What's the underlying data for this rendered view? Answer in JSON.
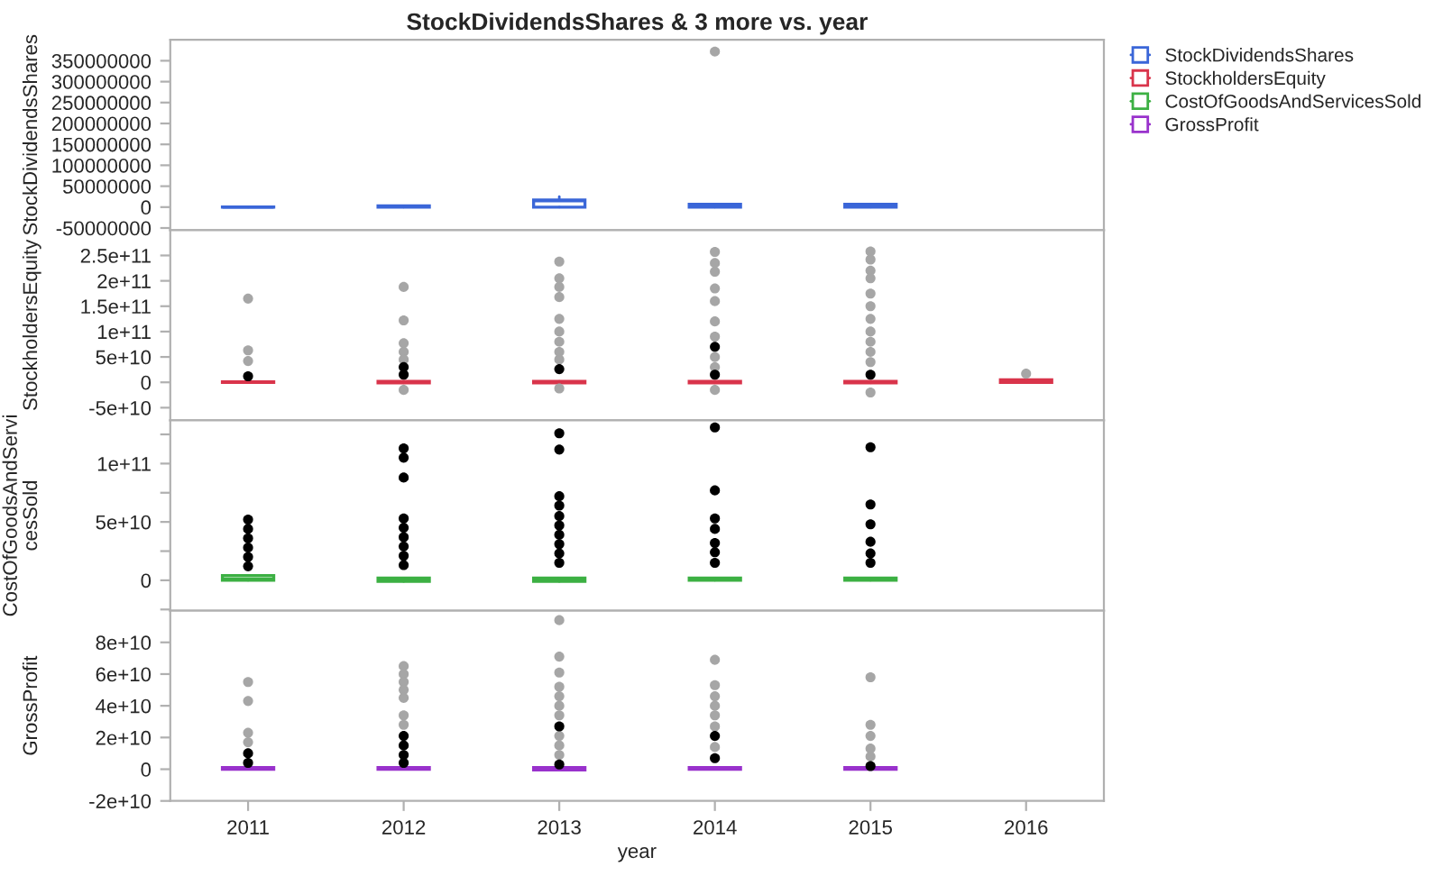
{
  "chart_data": [
    {
      "type": "box",
      "title": "StockDividendsShares & 3 more vs. year",
      "ylabel": "StockDividendsShares",
      "x": [
        2011,
        2012,
        2013,
        2014,
        2015
      ],
      "xlim": [
        2010.5,
        2016.5
      ],
      "xticks": [
        2011,
        2012,
        2013,
        2014,
        2015,
        2016
      ],
      "ylim": [
        -55000000,
        400000000
      ],
      "yticks": [
        -50000000,
        0,
        50000000,
        100000000,
        150000000,
        200000000,
        250000000,
        300000000,
        350000000
      ],
      "tick_labels": "y",
      "legend": "right",
      "series": [
        {
          "name": "StockDividendsShares",
          "color": "#3a66d8",
          "boxes": [
            {
              "low": 0,
              "q1": 0,
              "median": 0,
              "q3": 500000,
              "high": 500000
            },
            {
              "low": 0,
              "q1": 0,
              "median": 1000000,
              "q3": 3000000,
              "high": 3000000
            },
            {
              "low": 0,
              "q1": 0,
              "median": 15000000,
              "q3": 17000000,
              "high": 25000000
            },
            {
              "low": 0,
              "q1": 0,
              "median": 3000000,
              "q3": 7000000,
              "high": 7000000
            },
            {
              "low": 0,
              "q1": 0,
              "median": 3000000,
              "q3": 7000000,
              "high": 7000000
            }
          ]
        },
        {
          "type": "scatter",
          "color": "#a6a6a6",
          "x": [
            2014
          ],
          "values": [
            372000000
          ]
        }
      ]
    },
    {
      "type": "box",
      "ylabel": "StockholdersEquity",
      "x": [
        2011,
        2012,
        2013,
        2014,
        2015,
        2016
      ],
      "xlim": [
        2010.5,
        2016.5
      ],
      "xticks": [
        2011,
        2012,
        2013,
        2014,
        2015,
        2016
      ],
      "ylim": [
        -75000000000,
        300000000000
      ],
      "yticks": [
        {
          "value": -50000000000,
          "label": "-5e+10"
        },
        0,
        {
          "value": 50000000000,
          "label": "5e+10"
        },
        {
          "value": 100000000000,
          "label": "1e+11"
        },
        {
          "value": 150000000000,
          "label": "1.5e+11"
        },
        {
          "value": 200000000000,
          "label": "2e+11"
        },
        {
          "value": 250000000000,
          "label": "2.5e+11"
        }
      ],
      "tick_labels": "y",
      "legend": "right",
      "series": [
        {
          "name": "StockholdersEquity",
          "color": "#d9344b",
          "boxes": [
            {
              "low": 0,
              "q1": 0,
              "median": 500000000,
              "q3": 1000000000,
              "high": 1000000000
            },
            {
              "low": -1000000000,
              "q1": -1000000000,
              "median": 500000000,
              "q3": 2000000000,
              "high": 2000000000
            },
            {
              "low": -1000000000,
              "q1": -1000000000,
              "median": 500000000,
              "q3": 2000000000,
              "high": 2000000000
            },
            {
              "low": -1000000000,
              "q1": -1000000000,
              "median": 500000000,
              "q3": 2000000000,
              "high": 2000000000
            },
            {
              "low": -1000000000,
              "q1": -1000000000,
              "median": 500000000,
              "q3": 2000000000,
              "high": 2000000000
            },
            {
              "low": 0,
              "q1": 0,
              "median": 2000000000,
              "q3": 5000000000,
              "high": 5000000000
            }
          ]
        },
        {
          "type": "scatter",
          "color": "#a6a6a6",
          "x": [
            2011,
            2011,
            2011,
            2012,
            2012,
            2012,
            2012,
            2012,
            2012,
            2013,
            2013,
            2013,
            2013,
            2013,
            2013,
            2013,
            2013,
            2013,
            2013,
            2014,
            2014,
            2014,
            2014,
            2014,
            2014,
            2014,
            2014,
            2014,
            2014,
            2015,
            2015,
            2015,
            2015,
            2015,
            2015,
            2015,
            2015,
            2015,
            2015,
            2015,
            2015,
            2016
          ],
          "values": [
            165000000000,
            63000000000,
            42000000000,
            188000000000,
            122000000000,
            77000000000,
            60000000000,
            45000000000,
            -15000000000,
            238000000000,
            205000000000,
            188000000000,
            168000000000,
            125000000000,
            100000000000,
            80000000000,
            60000000000,
            45000000000,
            -12000000000,
            257000000000,
            235000000000,
            218000000000,
            185000000000,
            160000000000,
            120000000000,
            90000000000,
            50000000000,
            30000000000,
            -15000000000,
            258000000000,
            242000000000,
            220000000000,
            205000000000,
            175000000000,
            150000000000,
            125000000000,
            100000000000,
            80000000000,
            60000000000,
            40000000000,
            -20000000000,
            17000000000
          ]
        },
        {
          "type": "scatter",
          "color": "#000000",
          "x": [
            2011,
            2012,
            2012,
            2013,
            2014,
            2014,
            2015
          ],
          "values": [
            12000000000,
            30000000000,
            15000000000,
            26000000000,
            70000000000,
            15000000000,
            15000000000
          ]
        }
      ]
    },
    {
      "type": "box",
      "ylabel": "CostOfGoodsAndServicesSold",
      "x": [
        2011,
        2012,
        2013,
        2014,
        2015
      ],
      "xlim": [
        2010.5,
        2016.5
      ],
      "xticks": [
        2011,
        2012,
        2013,
        2014,
        2015,
        2016
      ],
      "ylim": [
        -26000000000,
        137000000000
      ],
      "yticks": [
        {
          "value": -25000000000,
          "label": null
        },
        0,
        {
          "value": 25000000000,
          "label": null
        },
        {
          "value": 50000000000,
          "label": "5e+10"
        },
        {
          "value": 75000000000,
          "label": null
        },
        {
          "value": 100000000000,
          "label": "1e+11"
        },
        {
          "value": 125000000000,
          "label": null
        }
      ],
      "tick_labels": "y",
      "legend": "right",
      "series": [
        {
          "name": "CostOfGoodsAndServicesSold",
          "color": "#3cb043",
          "boxes": [
            {
              "low": 0,
              "q1": 0,
              "median": 1000000000,
              "q3": 4000000000,
              "high": 4000000000
            },
            {
              "low": -1000000000,
              "q1": -1000000000,
              "median": 500000000,
              "q3": 2000000000,
              "high": 2000000000
            },
            {
              "low": -1000000000,
              "q1": -1000000000,
              "median": 500000000,
              "q3": 2000000000,
              "high": 2000000000
            },
            {
              "low": 0,
              "q1": 0,
              "median": 500000000,
              "q3": 2000000000,
              "high": 2000000000
            },
            {
              "low": 0,
              "q1": 0,
              "median": 500000000,
              "q3": 2000000000,
              "high": 2000000000
            }
          ]
        },
        {
          "type": "scatter",
          "color": "#000000",
          "x": [
            2011,
            2011,
            2011,
            2011,
            2011,
            2011,
            2012,
            2012,
            2012,
            2012,
            2012,
            2012,
            2012,
            2012,
            2012,
            2013,
            2013,
            2013,
            2013,
            2013,
            2013,
            2013,
            2013,
            2013,
            2013,
            2014,
            2014,
            2014,
            2014,
            2014,
            2014,
            2014,
            2015,
            2015,
            2015,
            2015,
            2015,
            2015
          ],
          "values": [
            52000000000,
            44000000000,
            36000000000,
            28000000000,
            20000000000,
            12000000000,
            113000000000,
            105000000000,
            88000000000,
            53000000000,
            45000000000,
            37000000000,
            29000000000,
            21000000000,
            13000000000,
            126000000000,
            112000000000,
            72000000000,
            64000000000,
            55000000000,
            47000000000,
            39000000000,
            31000000000,
            23000000000,
            15000000000,
            131000000000,
            77000000000,
            53000000000,
            44000000000,
            32000000000,
            24000000000,
            15000000000,
            114000000000,
            65000000000,
            48000000000,
            33000000000,
            23000000000,
            15000000000
          ]
        }
      ]
    },
    {
      "type": "box",
      "ylabel": "GrossProfit",
      "xlabel": "year",
      "x": [
        2011,
        2012,
        2013,
        2014,
        2015
      ],
      "xlim": [
        2010.5,
        2016.5
      ],
      "xticks": [
        2011,
        2012,
        2013,
        2014,
        2015,
        2016
      ],
      "ylim": [
        -20000000000,
        100000000000
      ],
      "yticks": [
        {
          "value": -20000000000,
          "label": "-2e+10"
        },
        0,
        {
          "value": 20000000000,
          "label": "2e+10"
        },
        {
          "value": 40000000000,
          "label": "4e+10"
        },
        {
          "value": 60000000000,
          "label": "6e+10"
        },
        {
          "value": 80000000000,
          "label": "8e+10"
        }
      ],
      "legend": "right",
      "series": [
        {
          "name": "GrossProfit",
          "color": "#9932cc",
          "boxes": [
            {
              "low": 0,
              "q1": 0,
              "median": 500000000,
              "q3": 1000000000,
              "high": 1000000000
            },
            {
              "low": 0,
              "q1": 0,
              "median": 500000000,
              "q3": 1000000000,
              "high": 1000000000
            },
            {
              "low": -500000000,
              "q1": -500000000,
              "median": 0,
              "q3": 1000000000,
              "high": 1000000000
            },
            {
              "low": 0,
              "q1": 0,
              "median": 500000000,
              "q3": 1000000000,
              "high": 1000000000
            },
            {
              "low": 0,
              "q1": 0,
              "median": 500000000,
              "q3": 1000000000,
              "high": 1000000000
            }
          ]
        },
        {
          "type": "scatter",
          "color": "#a6a6a6",
          "x": [
            2011,
            2011,
            2011,
            2011,
            2012,
            2012,
            2012,
            2012,
            2012,
            2012,
            2012,
            2013,
            2013,
            2013,
            2013,
            2013,
            2013,
            2013,
            2013,
            2013,
            2013,
            2014,
            2014,
            2014,
            2014,
            2014,
            2014,
            2014,
            2015,
            2015,
            2015,
            2015,
            2015
          ],
          "values": [
            55000000000,
            43000000000,
            23000000000,
            17000000000,
            65000000000,
            60000000000,
            55000000000,
            50000000000,
            45000000000,
            34000000000,
            28000000000,
            94000000000,
            71000000000,
            61000000000,
            52000000000,
            46000000000,
            40000000000,
            34000000000,
            21000000000,
            15000000000,
            9000000000,
            69000000000,
            53000000000,
            46000000000,
            40000000000,
            34000000000,
            27000000000,
            14000000000,
            58000000000,
            28000000000,
            21000000000,
            13000000000,
            8000000000
          ]
        },
        {
          "type": "scatter",
          "color": "#000000",
          "x": [
            2011,
            2011,
            2012,
            2012,
            2012,
            2012,
            2013,
            2013,
            2014,
            2014,
            2015
          ],
          "values": [
            10000000000,
            4000000000,
            21000000000,
            15000000000,
            9000000000,
            4000000000,
            27000000000,
            3000000000,
            21000000000,
            7000000000,
            2000000000
          ]
        }
      ]
    }
  ]
}
